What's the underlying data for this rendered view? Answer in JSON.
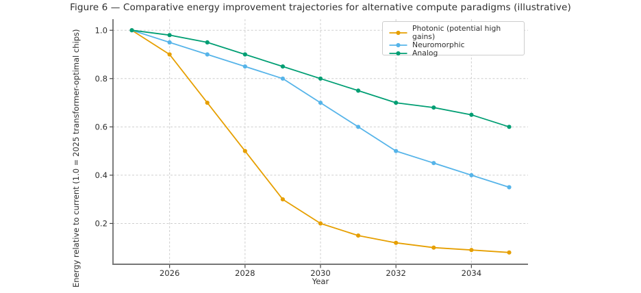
{
  "chart_data": {
    "type": "line",
    "title": "Figure 6 — Comparative energy improvement trajectories for alternative compute paradigms (illustrative)",
    "xlabel": "Year",
    "ylabel": "Energy relative to current (1.0 = 2025 transformer-optimal chips)",
    "x": [
      2025,
      2026,
      2027,
      2028,
      2029,
      2030,
      2031,
      2032,
      2033,
      2034,
      2035
    ],
    "series": [
      {
        "name": "Photonic (potential high gains)",
        "color": "#E69F00",
        "values": [
          1.0,
          0.9,
          0.7,
          0.5,
          0.3,
          0.2,
          0.15,
          0.12,
          0.1,
          0.09,
          0.08
        ]
      },
      {
        "name": "Neuromorphic",
        "color": "#56B4E9",
        "values": [
          1.0,
          0.95,
          0.9,
          0.85,
          0.8,
          0.7,
          0.6,
          0.5,
          0.45,
          0.4,
          0.35
        ]
      },
      {
        "name": "Analog",
        "color": "#009E73",
        "values": [
          1.0,
          0.98,
          0.95,
          0.9,
          0.85,
          0.8,
          0.75,
          0.7,
          0.68,
          0.65,
          0.6
        ]
      }
    ],
    "xtick_labels": [
      "2026",
      "2028",
      "2030",
      "2032",
      "2034"
    ],
    "xtick_values": [
      2026,
      2028,
      2030,
      2032,
      2034
    ],
    "ytick_labels": [
      "0.2",
      "0.4",
      "0.6",
      "0.8",
      "1.0"
    ],
    "ytick_values": [
      0.2,
      0.4,
      0.6,
      0.8,
      1.0
    ],
    "xlim": [
      2024.5,
      2035.5
    ],
    "ylim": [
      0.034,
      1.046
    ],
    "grid": true,
    "grid_style": "dashed",
    "legend_position": "upper-right",
    "marker": "circle",
    "colors": {
      "grid": "#cdcdcd",
      "spine": "#555555",
      "text": "#2e2e2e",
      "legend_border": "#cccccc",
      "background": "#ffffff"
    }
  }
}
